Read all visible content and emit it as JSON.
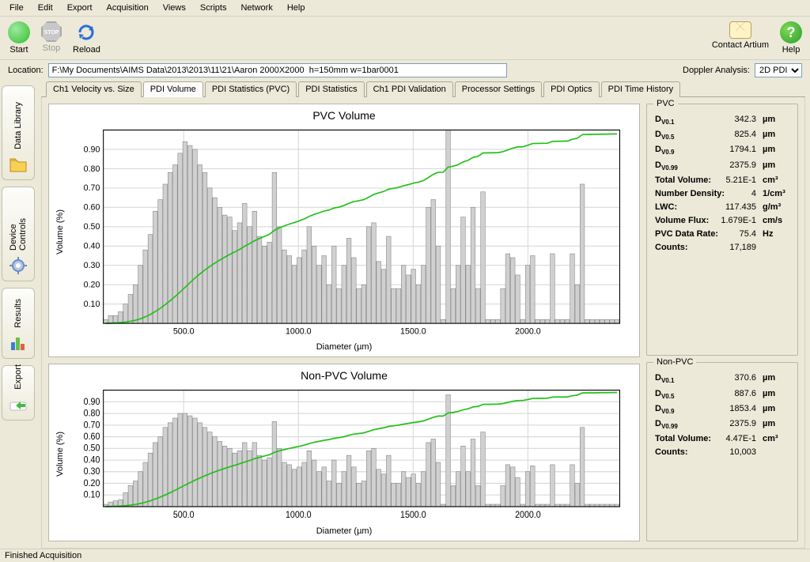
{
  "menu": [
    "File",
    "Edit",
    "Export",
    "Acquisition",
    "Views",
    "Scripts",
    "Network",
    "Help"
  ],
  "toolbar": {
    "start": "Start",
    "stop": "Stop",
    "reload": "Reload",
    "contact": "Contact Artium",
    "help": "Help",
    "start_color": "#2fbf2f",
    "reload_color": "#2a6fd6"
  },
  "location": {
    "label": "Location:",
    "value": "F:\\My Documents\\AIMS Data\\2013\\2013\\11\\21\\Aaron 2000X2000  h=150mm w=1bar0001",
    "doppler_label": "Doppler Analysis:",
    "doppler_value": "2D PDI"
  },
  "sidetabs": [
    {
      "label": "Data Library",
      "icon": "folder",
      "colors": [
        "#f7d154",
        "#e0a020"
      ]
    },
    {
      "label": "Device Controls",
      "icon": "gear",
      "colors": [
        "#6a8fc7",
        "#b8c8e0"
      ]
    },
    {
      "label": "Results",
      "icon": "bars",
      "colors": [
        "#3a7fd5",
        "#6bbf4b",
        "#e06048"
      ]
    },
    {
      "label": "Export",
      "icon": "arrow",
      "colors": [
        "#3cbf3c",
        "#ffffff"
      ]
    }
  ],
  "tabs": [
    "Ch1 Velocity vs. Size",
    "PDI Volume",
    "PDI Statistics (PVC)",
    "PDI Statistics",
    "Ch1 PDI Validation",
    "Processor Settings",
    "PDI Optics",
    "PDI Time History"
  ],
  "active_tab": 1,
  "chart_common": {
    "ylabel": "Volume (%)",
    "xlabel": "Diameter (µm)",
    "xlim": [
      150,
      2400
    ],
    "xticks": [
      500,
      1000,
      1500,
      2000
    ],
    "bar_fill": "#d0d0d0",
    "bar_stroke": "#808080",
    "line_color": "#22c018",
    "grid_color": "#d8d8d8",
    "axis_color": "#000000",
    "bg": "#ffffff",
    "tick_font": 11
  },
  "pvc_chart": {
    "title": "PVC Volume",
    "ylim": [
      0,
      1.0
    ],
    "yticks": [
      0.1,
      0.2,
      0.3,
      0.4,
      0.5,
      0.6,
      0.7,
      0.8,
      0.9
    ],
    "bars": [
      0.02,
      0.04,
      0.04,
      0.06,
      0.1,
      0.15,
      0.2,
      0.3,
      0.38,
      0.46,
      0.58,
      0.64,
      0.72,
      0.78,
      0.82,
      0.88,
      0.94,
      0.92,
      0.9,
      0.82,
      0.78,
      0.7,
      0.65,
      0.6,
      0.56,
      0.55,
      0.48,
      0.52,
      0.62,
      0.5,
      0.58,
      0.45,
      0.4,
      0.42,
      0.78,
      0.5,
      0.38,
      0.35,
      0.3,
      0.34,
      0.38,
      0.5,
      0.4,
      0.3,
      0.35,
      0.2,
      0.4,
      0.18,
      0.3,
      0.44,
      0.34,
      0.18,
      0.2,
      0.5,
      0.52,
      0.32,
      0.28,
      0.45,
      0.18,
      0.18,
      0.3,
      0.25,
      0.28,
      0.2,
      0.3,
      0.6,
      0.64,
      0.4,
      0.02,
      1.0,
      0.18,
      0.3,
      0.55,
      0.3,
      0.6,
      0.18,
      0.68,
      0.02,
      0.02,
      0.02,
      0.18,
      0.36,
      0.34,
      0.25,
      0.02,
      0.3,
      0.35,
      0.02,
      0.02,
      0.02,
      0.36,
      0.02,
      0.02,
      0.02,
      0.36,
      0.2,
      0.72,
      0.02,
      0.02,
      0.02,
      0.02,
      0.02,
      0.02,
      0.02
    ]
  },
  "nonpvc_chart": {
    "title": "Non-PVC Volume",
    "ylim": [
      0,
      1.0
    ],
    "yticks": [
      0.1,
      0.2,
      0.3,
      0.4,
      0.5,
      0.6,
      0.7,
      0.8,
      0.9
    ],
    "bars": [
      0.02,
      0.04,
      0.05,
      0.06,
      0.12,
      0.18,
      0.22,
      0.3,
      0.38,
      0.46,
      0.55,
      0.6,
      0.68,
      0.72,
      0.76,
      0.8,
      0.8,
      0.78,
      0.76,
      0.72,
      0.68,
      0.64,
      0.6,
      0.56,
      0.52,
      0.5,
      0.46,
      0.48,
      0.55,
      0.48,
      0.55,
      0.44,
      0.4,
      0.42,
      0.73,
      0.5,
      0.38,
      0.36,
      0.32,
      0.34,
      0.38,
      0.48,
      0.4,
      0.3,
      0.34,
      0.22,
      0.4,
      0.2,
      0.3,
      0.44,
      0.34,
      0.2,
      0.22,
      0.48,
      0.5,
      0.32,
      0.28,
      0.44,
      0.2,
      0.2,
      0.3,
      0.25,
      0.28,
      0.2,
      0.3,
      0.55,
      0.58,
      0.38,
      0.02,
      0.96,
      0.18,
      0.3,
      0.52,
      0.3,
      0.58,
      0.18,
      0.64,
      0.02,
      0.02,
      0.02,
      0.18,
      0.36,
      0.34,
      0.25,
      0.02,
      0.3,
      0.35,
      0.02,
      0.02,
      0.02,
      0.36,
      0.02,
      0.02,
      0.02,
      0.36,
      0.2,
      0.68,
      0.02,
      0.02,
      0.02,
      0.02,
      0.02,
      0.02,
      0.02
    ]
  },
  "pvc_stats": {
    "legend": "PVC",
    "rows": [
      {
        "k": "D",
        "sub": "V0.1",
        "v": "342.3",
        "u": "µm"
      },
      {
        "k": "D",
        "sub": "V0.5",
        "v": "825.4",
        "u": "µm"
      },
      {
        "k": "D",
        "sub": "V0.9",
        "v": "1794.1",
        "u": "µm"
      },
      {
        "k": "D",
        "sub": "V0.99",
        "v": "2375.9",
        "u": "µm"
      },
      {
        "k": "Total Volume:",
        "v": "5.21E-1",
        "u": "cm³"
      },
      {
        "k": "Number Density:",
        "v": "4",
        "u": "1/cm³"
      },
      {
        "k": "LWC:",
        "v": "117.435",
        "u": "g/m³"
      },
      {
        "k": "Volume Flux:",
        "v": "1.679E-1",
        "u": "cm/s"
      },
      {
        "k": "PVC Data Rate:",
        "v": "75.4",
        "u": "Hz"
      },
      {
        "k": "Counts:",
        "v": "17,189",
        "u": ""
      }
    ]
  },
  "nonpvc_stats": {
    "legend": "Non-PVC",
    "rows": [
      {
        "k": "D",
        "sub": "V0.1",
        "v": "370.6",
        "u": "µm"
      },
      {
        "k": "D",
        "sub": "V0.5",
        "v": "887.6",
        "u": "µm"
      },
      {
        "k": "D",
        "sub": "V0.9",
        "v": "1853.4",
        "u": "µm"
      },
      {
        "k": "D",
        "sub": "V0.99",
        "v": "2375.9",
        "u": "µm"
      },
      {
        "k": "Total Volume:",
        "v": "4.47E-1",
        "u": "cm³"
      },
      {
        "k": "Counts:",
        "v": "10,003",
        "u": ""
      }
    ]
  },
  "status": "Finished Acquisition"
}
